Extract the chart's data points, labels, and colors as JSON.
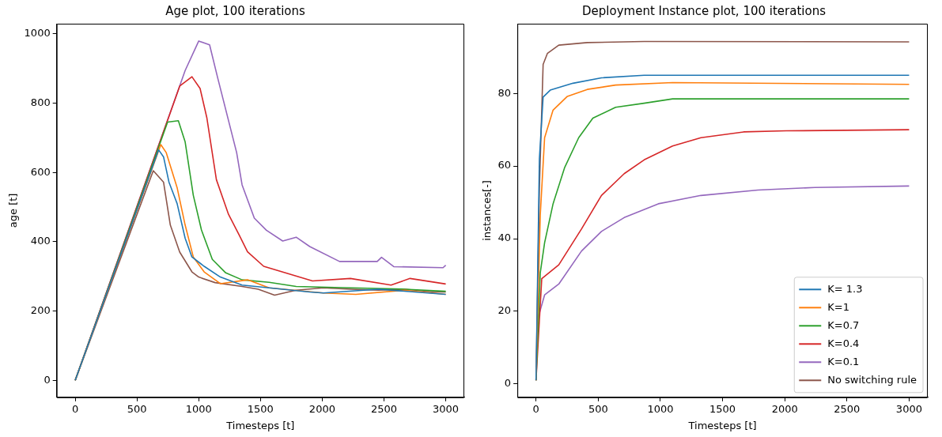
{
  "chart_data": [
    {
      "type": "line",
      "title": "Age plot, 100 iterations",
      "xlabel": "Timesteps [t]",
      "ylabel": "age [t]",
      "xlim": [
        -150,
        3150
      ],
      "ylim": [
        -49,
        1029
      ],
      "xticks": [
        0,
        500,
        1000,
        1500,
        2000,
        2500,
        3000
      ],
      "yticks": [
        0,
        200,
        400,
        600,
        800,
        1000
      ],
      "grid": false,
      "legend": false,
      "series": [
        {
          "color": "#1f77b4",
          "x": [
            0,
            675,
            715,
            759,
            825,
            890,
            945,
            1044,
            1175,
            1351,
            1570,
            1899,
            2009,
            2456,
            3000
          ],
          "values": [
            0,
            665,
            645,
            572,
            510,
            410,
            356,
            329,
            298,
            275,
            267,
            255,
            252,
            263,
            248
          ]
        },
        {
          "color": "#ff7f0e",
          "x": [
            0,
            693,
            737,
            825,
            890,
            956,
            1044,
            1175,
            1395,
            1570,
            2009,
            2272,
            2667,
            3000
          ],
          "values": [
            0,
            680,
            657,
            556,
            448,
            356,
            313,
            279,
            290,
            267,
            252,
            248,
            260,
            248
          ]
        },
        {
          "color": "#2ca02c",
          "x": [
            0,
            748,
            835,
            890,
            956,
            1022,
            1110,
            1219,
            1351,
            1570,
            1789,
            2228,
            2667,
            3000
          ],
          "values": [
            0,
            745,
            749,
            688,
            534,
            434,
            349,
            310,
            290,
            283,
            271,
            267,
            263,
            257
          ]
        },
        {
          "color": "#d62728",
          "x": [
            0,
            846,
            945,
            1011,
            1066,
            1143,
            1241,
            1329,
            1395,
            1526,
            1702,
            1921,
            2228,
            2557,
            2711,
            3000
          ],
          "values": [
            0,
            849,
            876,
            842,
            757,
            579,
            479,
            418,
            371,
            329,
            310,
            287,
            294,
            275,
            294,
            278
          ]
        },
        {
          "color": "#9467bd",
          "x": [
            0,
            890,
            1000,
            1088,
            1154,
            1307,
            1351,
            1450,
            1548,
            1680,
            1789,
            1899,
            2140,
            2445,
            2480,
            2579,
            2978,
            3000
          ],
          "values": [
            0,
            894,
            979,
            968,
            872,
            657,
            564,
            468,
            433,
            402,
            413,
            386,
            343,
            343,
            355,
            328,
            325,
            332
          ]
        },
        {
          "color": "#8c564b",
          "x": [
            0,
            632,
            715,
            770,
            846,
            945,
            1000,
            1132,
            1351,
            1482,
            1614,
            1789,
            2009,
            2228,
            2456,
            2667,
            2908,
            3000
          ],
          "values": [
            0,
            605,
            572,
            448,
            370,
            313,
            298,
            282,
            271,
            263,
            246,
            260,
            267,
            263,
            260,
            263,
            255,
            255
          ]
        }
      ]
    },
    {
      "type": "line",
      "title": "Deployment Instance plot, 100 iterations",
      "xlabel": "Timesteps [t]",
      "ylabel": "instances[-]",
      "xlim": [
        -150,
        3150
      ],
      "ylim": [
        -3.7,
        99.2
      ],
      "xticks": [
        0,
        500,
        1000,
        1500,
        2000,
        2500,
        3000
      ],
      "yticks": [
        0,
        20,
        40,
        60,
        80
      ],
      "grid": false,
      "legend": "bottom right",
      "series": [
        {
          "name": "K= 1.3",
          "color": "#1f77b4",
          "x": [
            0,
            27,
            57,
            114,
            297,
            526,
            869,
            1784,
            3000
          ],
          "values": [
            1,
            62,
            79,
            80.9,
            82.8,
            84.3,
            85,
            85,
            85
          ]
        },
        {
          "name": "K=1",
          "color": "#ff7f0e",
          "x": [
            0,
            5,
            34,
            69,
            137,
            252,
            412,
            640,
            1098,
            3000
          ],
          "values": [
            1,
            8.5,
            46.5,
            67.8,
            75.4,
            79.2,
            81.1,
            82.3,
            83,
            82.5
          ]
        },
        {
          "name": "K=0.7",
          "color": "#2ca02c",
          "x": [
            0,
            34,
            69,
            137,
            229,
            343,
            457,
            640,
            869,
            1098,
            3000
          ],
          "values": [
            1,
            30.6,
            38.9,
            49.6,
            59.5,
            67.8,
            73.2,
            76.2,
            77.3,
            78.5,
            78.5
          ]
        },
        {
          "name": "K=0.4",
          "color": "#d62728",
          "x": [
            0,
            46,
            183,
            366,
            526,
            709,
            869,
            1098,
            1326,
            1669,
            2012,
            3000
          ],
          "values": [
            1,
            29,
            32.8,
            42.7,
            51.9,
            57.9,
            61.7,
            65.5,
            67.8,
            69.4,
            69.7,
            70
          ]
        },
        {
          "name": "K=0.1",
          "color": "#9467bd",
          "x": [
            0,
            18,
            69,
            183,
            366,
            526,
            709,
            983,
            1326,
            1784,
            2241,
            3000
          ],
          "values": [
            4.7,
            18.4,
            24.5,
            27.5,
            36.6,
            42,
            45.8,
            49.6,
            51.9,
            53.4,
            54.1,
            54.5
          ]
        },
        {
          "name": "No switching rule",
          "color": "#8c564b",
          "x": [
            0,
            27,
            57,
            91,
            183,
            412,
            869,
            3000
          ],
          "values": [
            1,
            54,
            88,
            91,
            93.3,
            94,
            94.3,
            94.2
          ]
        }
      ]
    }
  ]
}
